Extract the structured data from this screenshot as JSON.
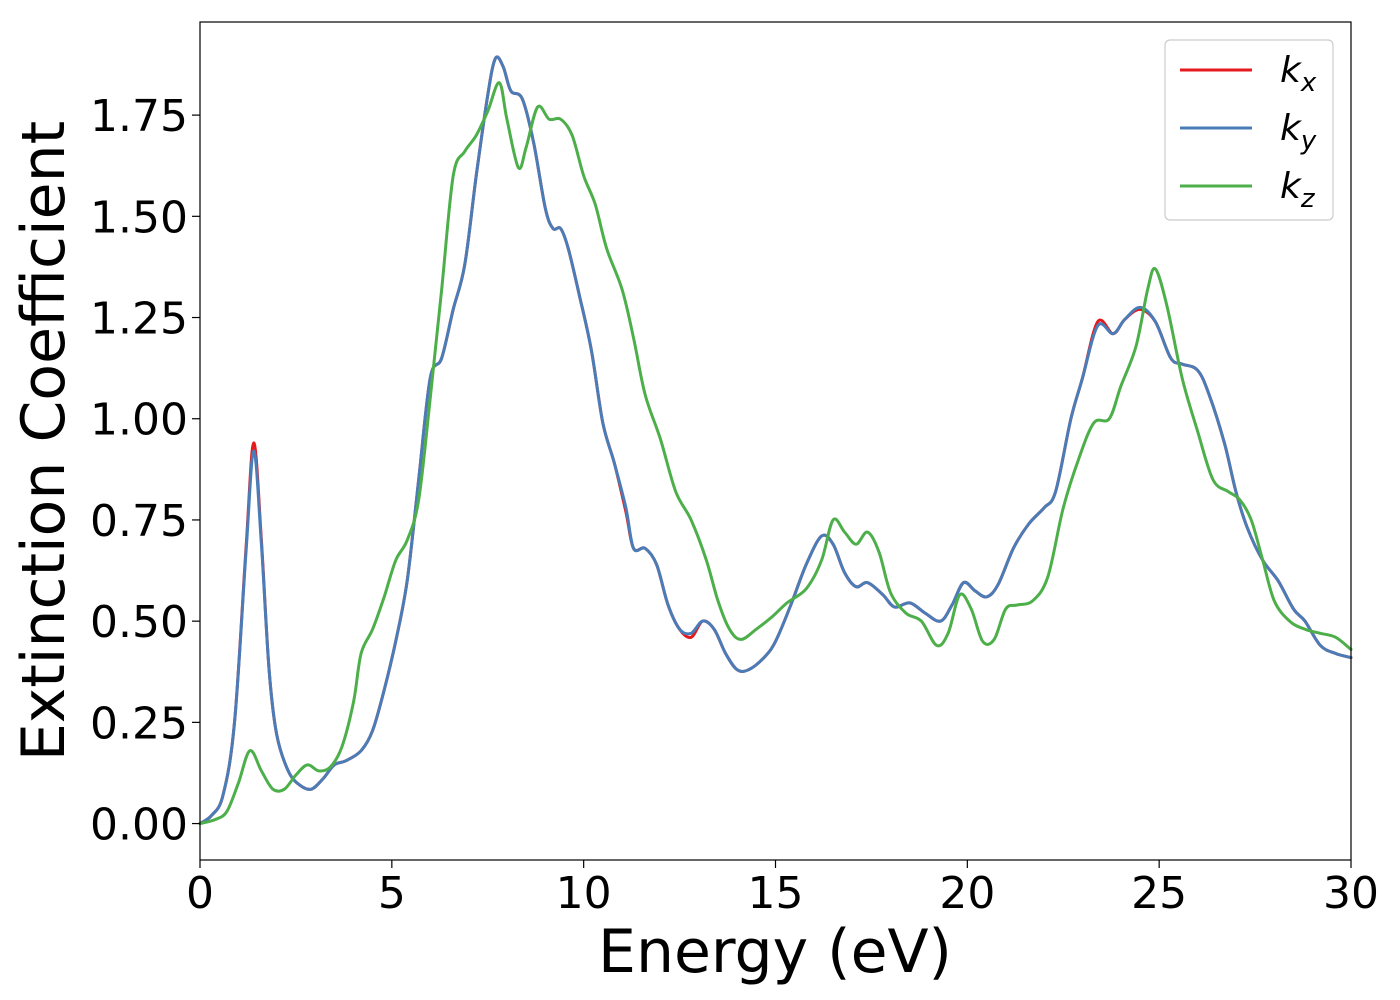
{
  "chart_data": {
    "type": "line",
    "xlabel": "Energy (eV)",
    "ylabel": "Extinction Coefficient",
    "xlim": [
      0,
      30
    ],
    "ylim": [
      -0.09,
      1.98
    ],
    "grid": false,
    "legend_position": "top-right",
    "x_ticks": [
      0,
      5,
      10,
      15,
      20,
      25,
      30
    ],
    "x_tick_labels": [
      "0",
      "5",
      "10",
      "15",
      "20",
      "25",
      "30"
    ],
    "y_ticks": [
      0,
      0.25,
      0.5,
      0.75,
      1.0,
      1.25,
      1.5,
      1.75
    ],
    "y_tick_labels": [
      "0.00",
      "0.25",
      "0.50",
      "0.75",
      "1.00",
      "1.25",
      "1.50",
      "1.75"
    ],
    "series": [
      {
        "name": "k",
        "subscript": "x",
        "color": "#e41a1c",
        "points": [
          [
            0,
            0
          ],
          [
            0.3,
            0.02
          ],
          [
            0.6,
            0.07
          ],
          [
            0.9,
            0.25
          ],
          [
            1.2,
            0.68
          ],
          [
            1.4,
            0.94
          ],
          [
            1.6,
            0.7
          ],
          [
            1.8,
            0.38
          ],
          [
            2.0,
            0.22
          ],
          [
            2.3,
            0.13
          ],
          [
            2.6,
            0.095
          ],
          [
            2.9,
            0.085
          ],
          [
            3.2,
            0.11
          ],
          [
            3.5,
            0.145
          ],
          [
            3.8,
            0.155
          ],
          [
            4.2,
            0.18
          ],
          [
            4.5,
            0.23
          ],
          [
            4.8,
            0.33
          ],
          [
            5.1,
            0.45
          ],
          [
            5.4,
            0.6
          ],
          [
            5.7,
            0.85
          ],
          [
            6.0,
            1.1
          ],
          [
            6.3,
            1.15
          ],
          [
            6.6,
            1.27
          ],
          [
            6.9,
            1.38
          ],
          [
            7.2,
            1.6
          ],
          [
            7.5,
            1.8
          ],
          [
            7.7,
            1.89
          ],
          [
            7.9,
            1.87
          ],
          [
            8.1,
            1.81
          ],
          [
            8.4,
            1.79
          ],
          [
            8.7,
            1.68
          ],
          [
            9.0,
            1.52
          ],
          [
            9.2,
            1.47
          ],
          [
            9.4,
            1.47
          ],
          [
            9.6,
            1.42
          ],
          [
            9.9,
            1.3
          ],
          [
            10.2,
            1.17
          ],
          [
            10.5,
            0.99
          ],
          [
            10.8,
            0.89
          ],
          [
            11.1,
            0.77
          ],
          [
            11.3,
            0.68
          ],
          [
            11.6,
            0.68
          ],
          [
            11.9,
            0.64
          ],
          [
            12.2,
            0.54
          ],
          [
            12.5,
            0.48
          ],
          [
            12.8,
            0.46
          ],
          [
            13.1,
            0.5
          ],
          [
            13.4,
            0.48
          ],
          [
            13.7,
            0.42
          ],
          [
            14.0,
            0.38
          ],
          [
            14.3,
            0.38
          ],
          [
            14.7,
            0.41
          ],
          [
            15.0,
            0.45
          ],
          [
            15.4,
            0.54
          ],
          [
            15.8,
            0.64
          ],
          [
            16.2,
            0.71
          ],
          [
            16.5,
            0.69
          ],
          [
            16.8,
            0.62
          ],
          [
            17.1,
            0.585
          ],
          [
            17.4,
            0.595
          ],
          [
            17.8,
            0.565
          ],
          [
            18.1,
            0.535
          ],
          [
            18.5,
            0.545
          ],
          [
            18.9,
            0.52
          ],
          [
            19.3,
            0.5
          ],
          [
            19.6,
            0.54
          ],
          [
            19.9,
            0.595
          ],
          [
            20.2,
            0.575
          ],
          [
            20.5,
            0.56
          ],
          [
            20.8,
            0.59
          ],
          [
            21.2,
            0.68
          ],
          [
            21.6,
            0.74
          ],
          [
            22.0,
            0.78
          ],
          [
            22.3,
            0.82
          ],
          [
            22.7,
            1.0
          ],
          [
            23.0,
            1.1
          ],
          [
            23.4,
            1.24
          ],
          [
            23.8,
            1.21
          ],
          [
            24.1,
            1.245
          ],
          [
            24.5,
            1.27
          ],
          [
            24.9,
            1.24
          ],
          [
            25.3,
            1.15
          ],
          [
            25.6,
            1.135
          ],
          [
            26.0,
            1.12
          ],
          [
            26.3,
            1.06
          ],
          [
            26.7,
            0.94
          ],
          [
            27.0,
            0.82
          ],
          [
            27.3,
            0.73
          ],
          [
            27.7,
            0.65
          ],
          [
            28.1,
            0.6
          ],
          [
            28.5,
            0.53
          ],
          [
            28.8,
            0.5
          ],
          [
            29.2,
            0.44
          ],
          [
            29.6,
            0.42
          ],
          [
            30,
            0.41
          ]
        ]
      },
      {
        "name": "k",
        "subscript": "y",
        "color": "#4a7db8",
        "points": [
          [
            0,
            0
          ],
          [
            0.3,
            0.02
          ],
          [
            0.6,
            0.07
          ],
          [
            0.9,
            0.25
          ],
          [
            1.2,
            0.67
          ],
          [
            1.4,
            0.92
          ],
          [
            1.6,
            0.69
          ],
          [
            1.8,
            0.38
          ],
          [
            2.0,
            0.22
          ],
          [
            2.3,
            0.13
          ],
          [
            2.6,
            0.095
          ],
          [
            2.9,
            0.085
          ],
          [
            3.2,
            0.11
          ],
          [
            3.5,
            0.145
          ],
          [
            3.8,
            0.155
          ],
          [
            4.2,
            0.18
          ],
          [
            4.5,
            0.23
          ],
          [
            4.8,
            0.33
          ],
          [
            5.1,
            0.45
          ],
          [
            5.4,
            0.6
          ],
          [
            5.7,
            0.85
          ],
          [
            6.0,
            1.1
          ],
          [
            6.3,
            1.15
          ],
          [
            6.6,
            1.27
          ],
          [
            6.9,
            1.38
          ],
          [
            7.2,
            1.6
          ],
          [
            7.5,
            1.8
          ],
          [
            7.7,
            1.89
          ],
          [
            7.9,
            1.87
          ],
          [
            8.1,
            1.81
          ],
          [
            8.4,
            1.79
          ],
          [
            8.7,
            1.68
          ],
          [
            9.0,
            1.52
          ],
          [
            9.2,
            1.47
          ],
          [
            9.4,
            1.47
          ],
          [
            9.6,
            1.42
          ],
          [
            9.9,
            1.3
          ],
          [
            10.2,
            1.17
          ],
          [
            10.5,
            0.99
          ],
          [
            10.8,
            0.89
          ],
          [
            11.1,
            0.78
          ],
          [
            11.3,
            0.68
          ],
          [
            11.6,
            0.68
          ],
          [
            11.9,
            0.64
          ],
          [
            12.2,
            0.54
          ],
          [
            12.5,
            0.48
          ],
          [
            12.8,
            0.47
          ],
          [
            13.1,
            0.5
          ],
          [
            13.4,
            0.48
          ],
          [
            13.7,
            0.42
          ],
          [
            14.0,
            0.38
          ],
          [
            14.3,
            0.38
          ],
          [
            14.7,
            0.41
          ],
          [
            15.0,
            0.45
          ],
          [
            15.4,
            0.54
          ],
          [
            15.8,
            0.64
          ],
          [
            16.2,
            0.71
          ],
          [
            16.5,
            0.69
          ],
          [
            16.8,
            0.62
          ],
          [
            17.1,
            0.585
          ],
          [
            17.4,
            0.595
          ],
          [
            17.8,
            0.565
          ],
          [
            18.1,
            0.535
          ],
          [
            18.5,
            0.545
          ],
          [
            18.9,
            0.52
          ],
          [
            19.3,
            0.5
          ],
          [
            19.6,
            0.54
          ],
          [
            19.9,
            0.595
          ],
          [
            20.2,
            0.575
          ],
          [
            20.5,
            0.56
          ],
          [
            20.8,
            0.59
          ],
          [
            21.2,
            0.68
          ],
          [
            21.6,
            0.74
          ],
          [
            22.0,
            0.78
          ],
          [
            22.3,
            0.82
          ],
          [
            22.7,
            1.0
          ],
          [
            23.0,
            1.1
          ],
          [
            23.4,
            1.23
          ],
          [
            23.8,
            1.21
          ],
          [
            24.1,
            1.245
          ],
          [
            24.5,
            1.275
          ],
          [
            24.9,
            1.24
          ],
          [
            25.3,
            1.15
          ],
          [
            25.6,
            1.135
          ],
          [
            26.0,
            1.12
          ],
          [
            26.3,
            1.06
          ],
          [
            26.7,
            0.94
          ],
          [
            27.0,
            0.82
          ],
          [
            27.3,
            0.73
          ],
          [
            27.7,
            0.65
          ],
          [
            28.1,
            0.6
          ],
          [
            28.5,
            0.53
          ],
          [
            28.8,
            0.5
          ],
          [
            29.2,
            0.44
          ],
          [
            29.6,
            0.42
          ],
          [
            30,
            0.41
          ]
        ]
      },
      {
        "name": "k",
        "subscript": "z",
        "color": "#4daf4a",
        "points": [
          [
            0,
            0
          ],
          [
            0.4,
            0.01
          ],
          [
            0.7,
            0.03
          ],
          [
            1.0,
            0.1
          ],
          [
            1.3,
            0.18
          ],
          [
            1.6,
            0.13
          ],
          [
            1.9,
            0.085
          ],
          [
            2.2,
            0.085
          ],
          [
            2.5,
            0.12
          ],
          [
            2.8,
            0.145
          ],
          [
            3.1,
            0.13
          ],
          [
            3.4,
            0.14
          ],
          [
            3.7,
            0.19
          ],
          [
            4.0,
            0.3
          ],
          [
            4.2,
            0.42
          ],
          [
            4.5,
            0.48
          ],
          [
            4.8,
            0.56
          ],
          [
            5.1,
            0.65
          ],
          [
            5.4,
            0.7
          ],
          [
            5.7,
            0.8
          ],
          [
            6.0,
            1.05
          ],
          [
            6.3,
            1.32
          ],
          [
            6.6,
            1.6
          ],
          [
            6.9,
            1.66
          ],
          [
            7.2,
            1.7
          ],
          [
            7.5,
            1.76
          ],
          [
            7.8,
            1.83
          ],
          [
            8.0,
            1.74
          ],
          [
            8.3,
            1.62
          ],
          [
            8.5,
            1.67
          ],
          [
            8.8,
            1.77
          ],
          [
            9.1,
            1.74
          ],
          [
            9.4,
            1.74
          ],
          [
            9.7,
            1.7
          ],
          [
            10.0,
            1.6
          ],
          [
            10.3,
            1.53
          ],
          [
            10.6,
            1.42
          ],
          [
            11.0,
            1.32
          ],
          [
            11.3,
            1.2
          ],
          [
            11.6,
            1.06
          ],
          [
            12.0,
            0.95
          ],
          [
            12.4,
            0.82
          ],
          [
            12.8,
            0.75
          ],
          [
            13.2,
            0.65
          ],
          [
            13.5,
            0.55
          ],
          [
            13.8,
            0.48
          ],
          [
            14.1,
            0.455
          ],
          [
            14.5,
            0.48
          ],
          [
            14.9,
            0.51
          ],
          [
            15.3,
            0.545
          ],
          [
            15.8,
            0.58
          ],
          [
            16.2,
            0.65
          ],
          [
            16.5,
            0.75
          ],
          [
            16.8,
            0.72
          ],
          [
            17.1,
            0.69
          ],
          [
            17.4,
            0.72
          ],
          [
            17.7,
            0.67
          ],
          [
            18.0,
            0.57
          ],
          [
            18.4,
            0.52
          ],
          [
            18.8,
            0.5
          ],
          [
            19.2,
            0.44
          ],
          [
            19.5,
            0.47
          ],
          [
            19.8,
            0.565
          ],
          [
            20.1,
            0.53
          ],
          [
            20.4,
            0.45
          ],
          [
            20.7,
            0.455
          ],
          [
            21.0,
            0.53
          ],
          [
            21.3,
            0.54
          ],
          [
            21.7,
            0.55
          ],
          [
            22.1,
            0.61
          ],
          [
            22.5,
            0.78
          ],
          [
            22.9,
            0.9
          ],
          [
            23.3,
            0.99
          ],
          [
            23.7,
            1.0
          ],
          [
            24.0,
            1.08
          ],
          [
            24.4,
            1.18
          ],
          [
            24.7,
            1.32
          ],
          [
            24.9,
            1.37
          ],
          [
            25.2,
            1.28
          ],
          [
            25.6,
            1.1
          ],
          [
            26.0,
            0.97
          ],
          [
            26.4,
            0.85
          ],
          [
            26.8,
            0.82
          ],
          [
            27.1,
            0.8
          ],
          [
            27.4,
            0.75
          ],
          [
            27.7,
            0.65
          ],
          [
            28.0,
            0.55
          ],
          [
            28.4,
            0.5
          ],
          [
            28.8,
            0.48
          ],
          [
            29.2,
            0.47
          ],
          [
            29.6,
            0.46
          ],
          [
            30,
            0.43
          ]
        ]
      }
    ]
  }
}
